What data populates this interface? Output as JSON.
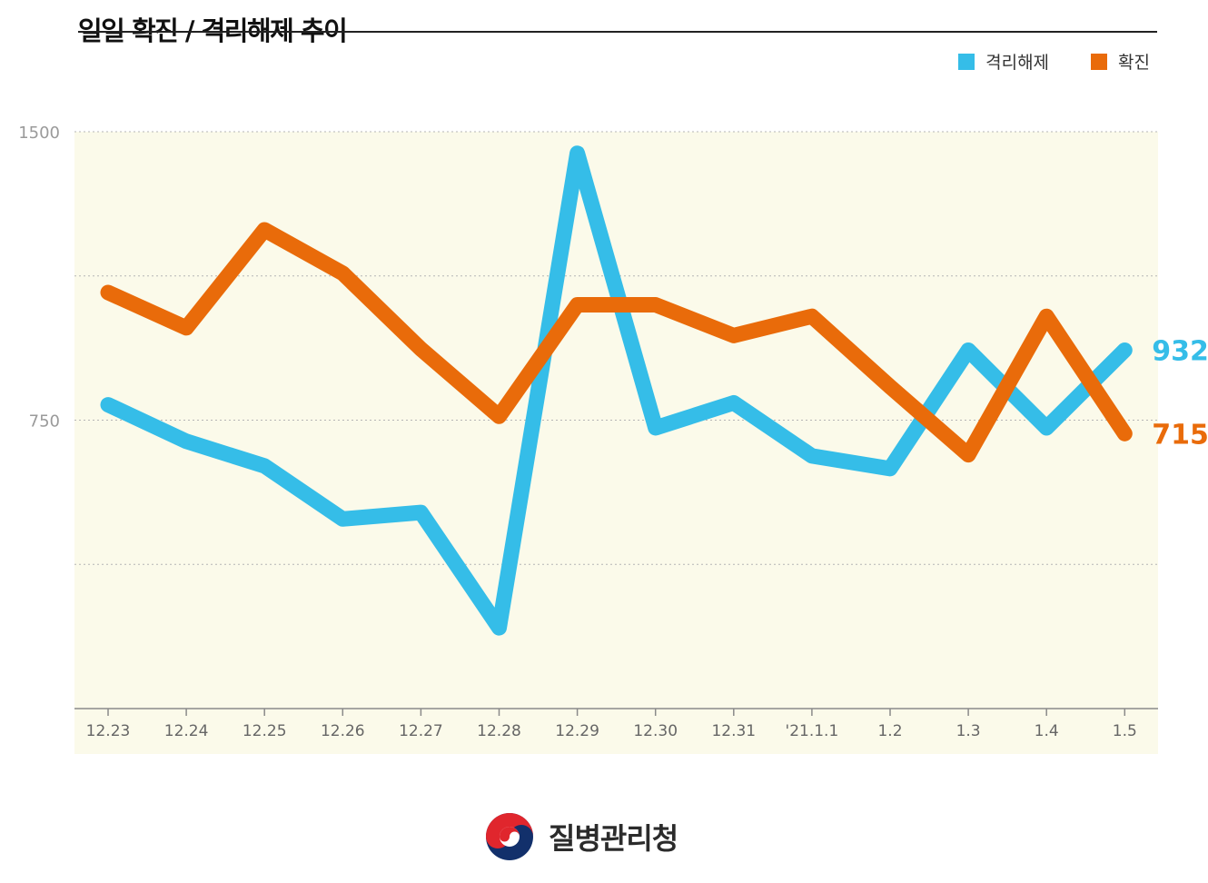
{
  "header": {
    "title": "일일 확진 / 격리해제 추이"
  },
  "legend": [
    {
      "label": "격리해제",
      "color": "#35BDE8"
    },
    {
      "label": "확진",
      "color": "#E96B0A"
    }
  ],
  "chart_data": {
    "type": "line",
    "title": "일일 확진 / 격리해제 추이",
    "categories": [
      "12.23",
      "12.24",
      "12.25",
      "12.26",
      "12.27",
      "12.28",
      "12.29",
      "12.30",
      "12.31",
      "'21.1.1",
      "1.2",
      "1.3",
      "1.4",
      "1.5"
    ],
    "ylim": [
      0,
      1500
    ],
    "yticks": [
      0,
      375,
      750,
      1125,
      1500
    ],
    "ytick_labels": [
      "",
      "",
      "750",
      "",
      "1500"
    ],
    "grid": true,
    "legend_position": "top-right",
    "series": [
      {
        "name": "격리해제",
        "color": "#35BDE8",
        "values": [
          790,
          695,
          631,
          493,
          510,
          210,
          1444,
          730,
          795,
          657,
          624,
          932,
          730,
          932
        ],
        "end_label": "932"
      },
      {
        "name": "확진",
        "color": "#E96B0A",
        "values": [
          1082,
          990,
          1245,
          1132,
          935,
          760,
          1050,
          1050,
          970,
          1020,
          837,
          660,
          1020,
          715
        ],
        "end_label": "715"
      }
    ]
  },
  "footer": {
    "agency_name": "질병관리청"
  }
}
